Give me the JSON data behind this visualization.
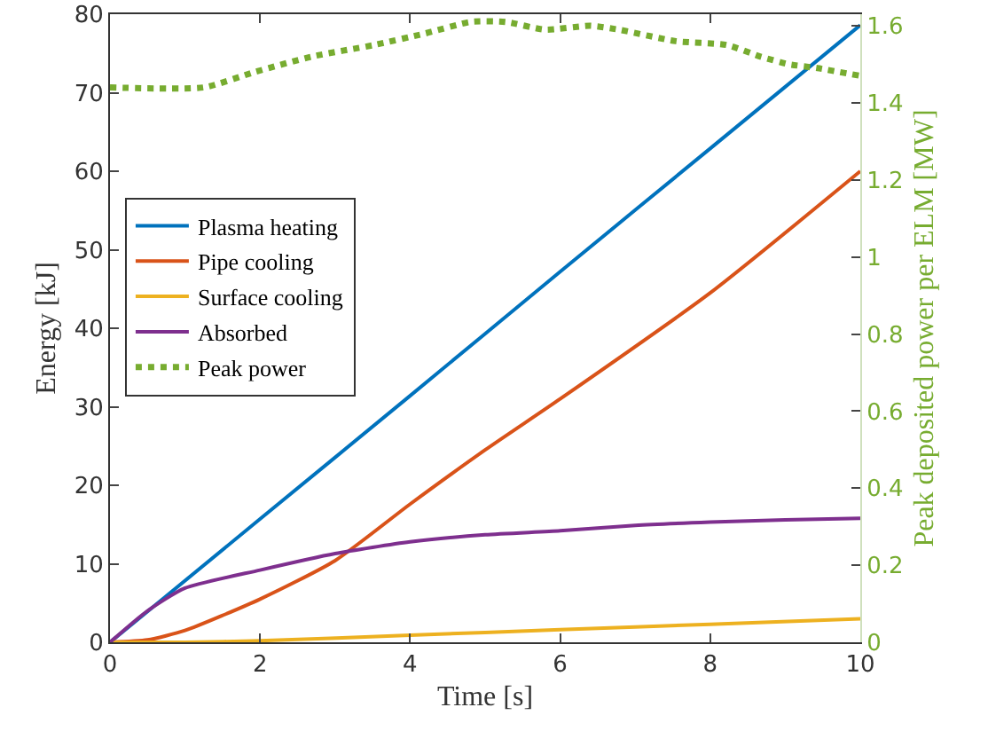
{
  "chart_data": {
    "type": "line",
    "xlabel": "Time [s]",
    "ylabel": "Energy [kJ]",
    "y2label": "Peak deposited power per ELM [MW]",
    "xlim": [
      0,
      10
    ],
    "xticks": [
      0,
      2,
      4,
      6,
      8,
      10
    ],
    "ylim": [
      0,
      80
    ],
    "yticks": [
      0,
      10,
      20,
      30,
      40,
      50,
      60,
      70,
      80
    ],
    "y2lim": [
      0,
      1.63
    ],
    "y2ticks": [
      0,
      0.2,
      0.4,
      0.6,
      0.8,
      1,
      1.2,
      1.4,
      1.6
    ],
    "grid": false,
    "legend": "left",
    "marker": "none",
    "series": [
      {
        "name": "Plasma heating",
        "color": "#0072bd",
        "x": [
          0,
          2,
          4,
          6,
          8,
          10
        ],
        "values": [
          0,
          15.7,
          31.4,
          47.2,
          62.9,
          78.6
        ]
      },
      {
        "name": "Pipe cooling",
        "color": "#d95319",
        "x": [
          0,
          0.5,
          1,
          2,
          3,
          4,
          5,
          6,
          8,
          10
        ],
        "values": [
          0,
          0.3,
          1.5,
          5.5,
          10.4,
          17.6,
          24.5,
          31,
          44.5,
          60
        ]
      },
      {
        "name": "Surface cooling",
        "color": "#edb120",
        "x": [
          0,
          1,
          2,
          4,
          6,
          8,
          10
        ],
        "values": [
          0,
          0,
          0.2,
          0.9,
          1.6,
          2.3,
          3
        ]
      },
      {
        "name": "Absorbed",
        "color": "#7e2f8e",
        "x": [
          0,
          0.5,
          1,
          2,
          3,
          4,
          5,
          6,
          7,
          8,
          9,
          10
        ],
        "values": [
          0,
          4,
          6.9,
          9.2,
          11.3,
          12.8,
          13.7,
          14.2,
          14.9,
          15.3,
          15.6,
          15.8
        ]
      },
      {
        "name": "Peak power",
        "color": "#77ac30",
        "axis": "y2",
        "line_style": "dotted",
        "x": [
          0,
          1.25,
          1.93,
          2.69,
          3.52,
          4.2,
          4.81,
          5.27,
          5.8,
          6.4,
          6.78,
          7.54,
          8.22,
          8.67,
          9.05,
          9.43,
          10
        ],
        "values": [
          1.44,
          1.44,
          1.48,
          1.52,
          1.55,
          1.58,
          1.61,
          1.61,
          1.59,
          1.6,
          1.59,
          1.56,
          1.55,
          1.52,
          1.5,
          1.49,
          1.47
        ]
      }
    ]
  }
}
